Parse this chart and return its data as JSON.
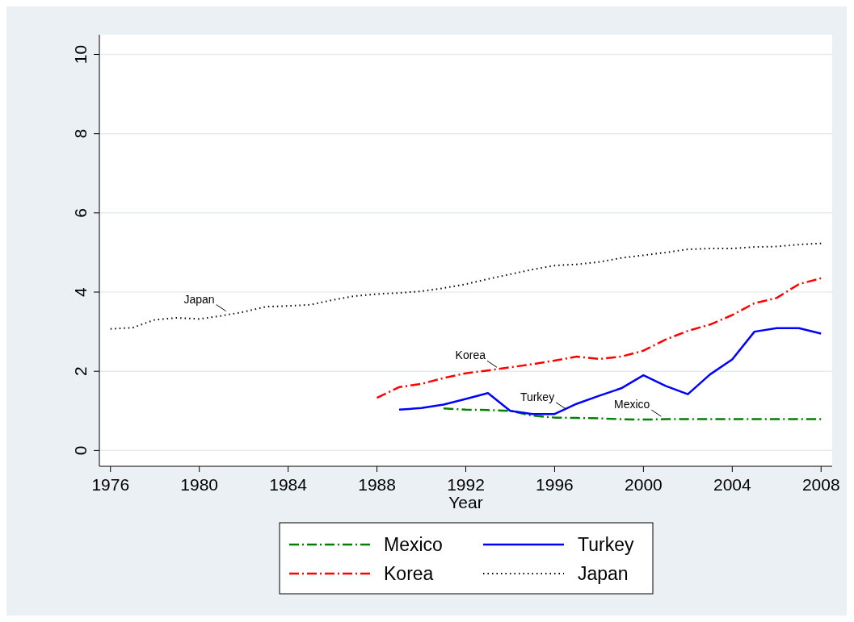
{
  "chart_data": {
    "type": "line",
    "xlabel": "Year",
    "legend": "bottom",
    "grid": "y",
    "marker": "none",
    "xlim": [
      1975.5,
      2008.5
    ],
    "xticks": [
      1976,
      1980,
      1984,
      1988,
      1992,
      1996,
      2000,
      2004,
      2008
    ],
    "ylim": [
      -0.4,
      10.5
    ],
    "yticks": [
      0,
      2,
      4,
      6,
      8,
      10
    ],
    "series": [
      {
        "name": "Mexico",
        "color": "#008000",
        "line_style": "dashed",
        "x": [
          1991,
          1992,
          1993,
          1994,
          1995,
          1996,
          1997,
          1998,
          1999,
          2000,
          2001,
          2002,
          2003,
          2004,
          2005,
          2006,
          2007,
          2008
        ],
        "values": [
          1.06,
          1.03,
          1.02,
          1.0,
          0.88,
          0.83,
          0.82,
          0.81,
          0.79,
          0.78,
          0.79,
          0.79,
          0.79,
          0.79,
          0.79,
          0.79,
          0.79,
          0.79
        ]
      },
      {
        "name": "Turkey",
        "color": "#0000ff",
        "line_style": "solid",
        "x": [
          1989,
          1990,
          1991,
          1992,
          1993,
          1994,
          1995,
          1996,
          1997,
          1998,
          1999,
          2000,
          2001,
          2002,
          2003,
          2004,
          2005,
          2006,
          2007,
          2008
        ],
        "values": [
          1.03,
          1.07,
          1.16,
          1.3,
          1.45,
          1.0,
          0.92,
          0.92,
          1.18,
          1.38,
          1.57,
          1.9,
          1.63,
          1.42,
          1.92,
          2.3,
          3.0,
          3.09,
          3.09,
          2.95
        ]
      },
      {
        "name": "Korea",
        "color": "#ff0000",
        "line_style": "dashed",
        "x": [
          1988,
          1989,
          1990,
          1991,
          1992,
          1993,
          1994,
          1995,
          1996,
          1997,
          1998,
          1999,
          2000,
          2001,
          2002,
          2003,
          2004,
          2005,
          2006,
          2007,
          2008
        ],
        "values": [
          1.33,
          1.6,
          1.68,
          1.83,
          1.95,
          2.02,
          2.1,
          2.18,
          2.27,
          2.37,
          2.31,
          2.37,
          2.52,
          2.8,
          3.02,
          3.18,
          3.42,
          3.72,
          3.85,
          4.2,
          4.35
        ]
      },
      {
        "name": "Japan",
        "color": "#000000",
        "line_style": "dotted",
        "x": [
          1976,
          1977,
          1978,
          1979,
          1980,
          1981,
          1982,
          1983,
          1984,
          1985,
          1986,
          1987,
          1988,
          1989,
          1990,
          1991,
          1992,
          1993,
          1994,
          1995,
          1996,
          1997,
          1998,
          1999,
          2000,
          2001,
          2002,
          2003,
          2004,
          2005,
          2006,
          2007,
          2008
        ],
        "values": [
          3.07,
          3.1,
          3.3,
          3.35,
          3.32,
          3.4,
          3.5,
          3.63,
          3.65,
          3.68,
          3.8,
          3.9,
          3.95,
          3.98,
          4.02,
          4.1,
          4.2,
          4.33,
          4.45,
          4.57,
          4.67,
          4.7,
          4.76,
          4.86,
          4.93,
          5.0,
          5.08,
          5.1,
          5.1,
          5.14,
          5.15,
          5.2,
          5.23
        ]
      }
    ],
    "annotations": [
      {
        "text": "Japan",
        "x": 1981.2,
        "y": 3.52
      },
      {
        "text": "Korea",
        "x": 1993.4,
        "y": 2.1
      },
      {
        "text": "Turkey",
        "x": 1996.5,
        "y": 1.05
      },
      {
        "text": "Mexico",
        "x": 2000.8,
        "y": 0.86
      }
    ]
  }
}
